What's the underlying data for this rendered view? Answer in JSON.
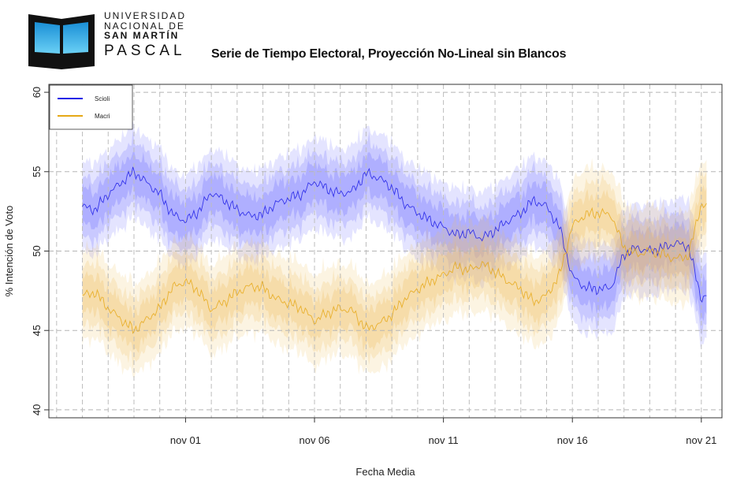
{
  "logo": {
    "line1": "UNIVERSIDAD",
    "line2": "NACIONAL DE",
    "line3": "SAN MARTÍN",
    "line4": "PASCAL",
    "colors": {
      "book": "#111111",
      "page_top": "#1a8fd6",
      "page_bottom": "#6ad0f5"
    }
  },
  "chart_data": {
    "type": "line",
    "title": "Serie de Tiempo Electoral, Proyección No-Lineal sin Blancos",
    "xlabel": "Fecha Media",
    "ylabel": "% Intención de Voto",
    "ylim": [
      39.5,
      60.5
    ],
    "yticks": [
      40,
      45,
      50,
      55,
      60
    ],
    "xlim_days": [
      -4.3,
      21.8
    ],
    "xticks": [
      {
        "label": "nov 01",
        "day": 1
      },
      {
        "label": "nov 06",
        "day": 6
      },
      {
        "label": "nov 11",
        "day": 11
      },
      {
        "label": "nov 16",
        "day": 16
      },
      {
        "label": "nov 21",
        "day": 21
      }
    ],
    "grid": true,
    "legend_position": "top-left",
    "x_days": [
      -3.0,
      -2.5,
      -2.0,
      -1.5,
      -1.0,
      -0.5,
      0.0,
      0.5,
      1.0,
      1.5,
      2.0,
      2.5,
      3.0,
      3.5,
      4.0,
      4.5,
      5.0,
      5.5,
      6.0,
      6.5,
      7.0,
      7.5,
      8.0,
      8.5,
      9.0,
      9.5,
      10.0,
      10.5,
      11.0,
      11.5,
      12.0,
      12.5,
      13.0,
      13.5,
      14.0,
      14.5,
      15.0,
      15.5,
      16.0,
      16.5,
      17.0,
      17.5,
      18.0,
      18.5,
      19.0,
      19.5,
      20.0,
      20.5,
      21.0,
      21.2
    ],
    "series": [
      {
        "name": "Scioli",
        "color": "#1f1fe6",
        "band_color": "#6a6aff",
        "values": [
          52.8,
          52.6,
          53.6,
          54.3,
          55.0,
          54.3,
          53.6,
          52.3,
          51.9,
          52.5,
          53.7,
          53.2,
          52.6,
          52.2,
          52.3,
          53.0,
          53.3,
          53.6,
          54.4,
          53.9,
          53.6,
          53.8,
          54.9,
          54.6,
          54.0,
          53.0,
          52.4,
          51.9,
          51.5,
          51.0,
          51.2,
          50.8,
          51.3,
          51.9,
          52.4,
          53.2,
          52.8,
          51.5,
          48.4,
          47.7,
          47.6,
          47.7,
          49.8,
          50.2,
          50.0,
          50.2,
          50.5,
          50.3,
          47.0,
          47.2
        ]
      },
      {
        "name": "Macri",
        "color": "#e6a817",
        "band_color": "#f0c060",
        "values": [
          47.2,
          47.4,
          46.4,
          45.7,
          45.0,
          45.7,
          46.4,
          47.7,
          48.1,
          47.5,
          46.3,
          46.8,
          47.4,
          47.8,
          47.7,
          47.0,
          46.7,
          46.4,
          45.6,
          46.1,
          46.4,
          46.2,
          45.1,
          45.4,
          46.0,
          47.0,
          47.6,
          48.1,
          48.5,
          49.0,
          48.8,
          49.2,
          48.7,
          48.1,
          47.6,
          46.8,
          47.2,
          48.5,
          51.6,
          52.3,
          52.4,
          52.3,
          50.2,
          49.8,
          50.0,
          49.8,
          49.5,
          49.7,
          53.0,
          52.8
        ]
      }
    ]
  }
}
